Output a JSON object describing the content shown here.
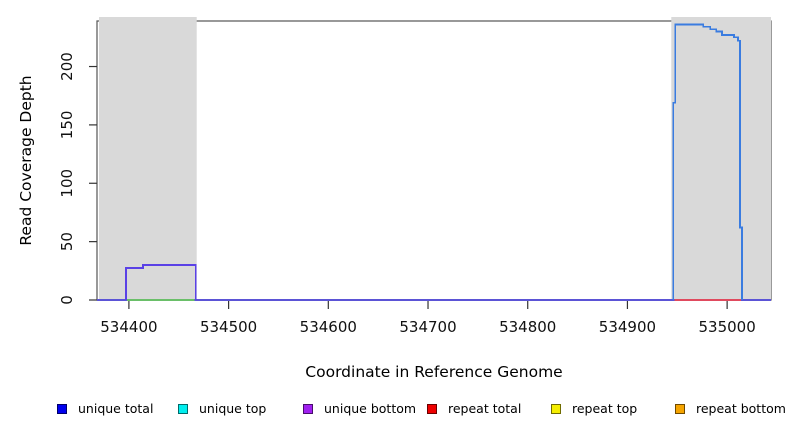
{
  "chart_data": {
    "type": "line",
    "title": "",
    "xlabel": "Coordinate in Reference Genome",
    "ylabel": "Read Coverage Depth",
    "xlim": [
      534368,
      535044
    ],
    "ylim": [
      0,
      239
    ],
    "x_ticks": [
      534400,
      534500,
      534600,
      534700,
      534800,
      534900,
      535000
    ],
    "y_ticks": [
      0,
      50,
      100,
      150,
      200
    ],
    "grid": false,
    "plot_border_color": "#555555",
    "tick_color": "#333333",
    "shaded_regions": [
      {
        "name": "left-gray-region",
        "x0": 534370,
        "x1": 534468,
        "color": "#d9d9d9"
      },
      {
        "name": "right-gray-region",
        "x0": 534944,
        "x1": 535044,
        "color": "#d9d9d9"
      }
    ],
    "series": [
      {
        "name": "zero-coverage-baseline",
        "color": "#5b54d6",
        "width": 2,
        "points": [
          [
            534368,
            0
          ],
          [
            535044,
            0
          ]
        ]
      },
      {
        "name": "left-region-green-baseline",
        "color": "#6abf69",
        "width": 1.6,
        "points": [
          [
            534398,
            0
          ],
          [
            534466,
            0
          ]
        ]
      },
      {
        "name": "right-region-repeat-baseline",
        "color": "#e04a5e",
        "width": 1.6,
        "points": [
          [
            534947,
            0
          ],
          [
            535014,
            0
          ]
        ]
      },
      {
        "name": "left-unique-coverage-plateau",
        "color": "#5a41e6",
        "width": 1.8,
        "points": [
          [
            534397,
            0
          ],
          [
            534397,
            27.5
          ],
          [
            534414,
            27.5
          ],
          [
            534414,
            30
          ],
          [
            534467,
            30
          ],
          [
            534467,
            0
          ]
        ]
      },
      {
        "name": "right-unique-coverage-plateau",
        "color": "#3a7ce0",
        "width": 1.8,
        "points": [
          [
            534946,
            0
          ],
          [
            534946,
            169
          ],
          [
            534948,
            169
          ],
          [
            534948,
            236
          ],
          [
            534976,
            236
          ],
          [
            534976,
            234
          ],
          [
            534983,
            234
          ],
          [
            534983,
            232
          ],
          [
            534989,
            232
          ],
          [
            534989,
            230
          ],
          [
            534995,
            230
          ],
          [
            534995,
            227
          ],
          [
            535007,
            227
          ],
          [
            535007,
            225
          ],
          [
            535011,
            225
          ],
          [
            535011,
            222
          ],
          [
            535013,
            222
          ],
          [
            535013,
            62
          ],
          [
            535015,
            62
          ],
          [
            535015,
            0
          ]
        ]
      }
    ],
    "legend": {
      "position": "bottom",
      "entries": [
        {
          "label": "unique total",
          "color": "#0000ee"
        },
        {
          "label": "unique top",
          "color": "#00eeee"
        },
        {
          "label": "unique bottom",
          "color": "#a020f0"
        },
        {
          "label": "repeat total",
          "color": "#ee0000"
        },
        {
          "label": "repeat top",
          "color": "#f5ee00"
        },
        {
          "label": "repeat bottom",
          "color": "#f5a400"
        }
      ]
    }
  }
}
